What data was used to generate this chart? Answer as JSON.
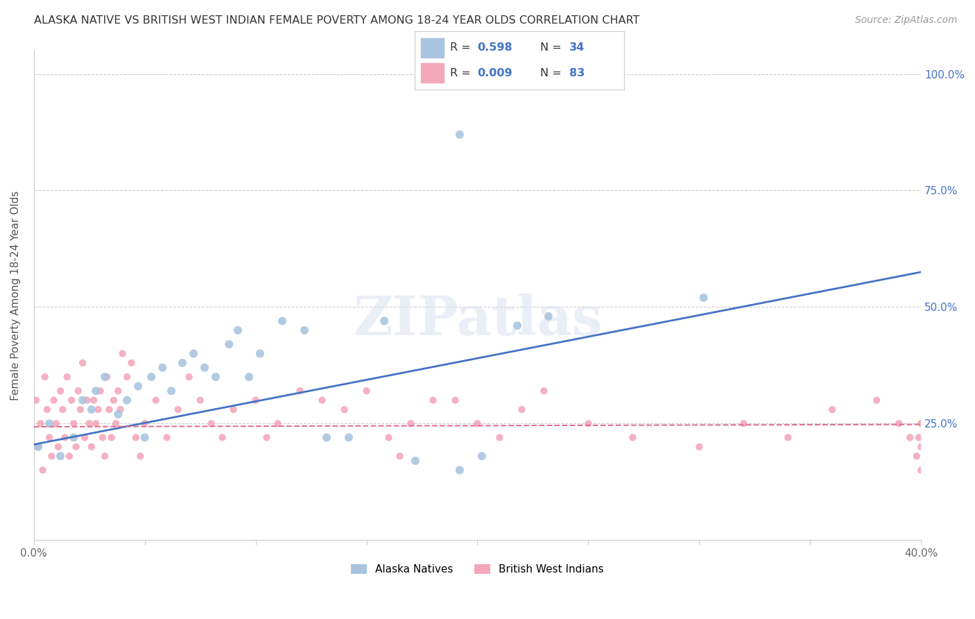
{
  "title": "ALASKA NATIVE VS BRITISH WEST INDIAN FEMALE POVERTY AMONG 18-24 YEAR OLDS CORRELATION CHART",
  "source": "Source: ZipAtlas.com",
  "ylabel": "Female Poverty Among 18-24 Year Olds",
  "xmin": 0.0,
  "xmax": 0.4,
  "ymin": 0.0,
  "ymax": 1.05,
  "x_ticks": [
    0.0,
    0.05,
    0.1,
    0.15,
    0.2,
    0.25,
    0.3,
    0.35,
    0.4
  ],
  "y_ticks": [
    0.0,
    0.25,
    0.5,
    0.75,
    1.0
  ],
  "y_tick_labels_right": [
    "",
    "25.0%",
    "50.0%",
    "75.0%",
    "100.0%"
  ],
  "legend_label1": "Alaska Natives",
  "legend_label2": "British West Indians",
  "R1": "0.598",
  "N1": "34",
  "R2": "0.009",
  "N2": "83",
  "color_blue": "#a8c4e0",
  "color_pink": "#f4a7b9",
  "color_blue_text": "#4472c4",
  "line_blue": "#4472c4",
  "line_pink": "#e07090",
  "watermark": "ZIPatlas",
  "alaska_x": [
    0.002,
    0.007,
    0.012,
    0.018,
    0.022,
    0.026,
    0.028,
    0.032,
    0.038,
    0.042,
    0.047,
    0.05,
    0.053,
    0.058,
    0.062,
    0.067,
    0.072,
    0.077,
    0.082,
    0.088,
    0.092,
    0.097,
    0.102,
    0.112,
    0.122,
    0.132,
    0.142,
    0.158,
    0.172,
    0.192,
    0.202,
    0.218,
    0.232,
    0.302
  ],
  "alaska_y": [
    0.2,
    0.25,
    0.18,
    0.22,
    0.3,
    0.28,
    0.32,
    0.35,
    0.27,
    0.3,
    0.33,
    0.22,
    0.35,
    0.37,
    0.32,
    0.38,
    0.4,
    0.37,
    0.35,
    0.42,
    0.45,
    0.35,
    0.4,
    0.47,
    0.45,
    0.22,
    0.22,
    0.47,
    0.17,
    0.15,
    0.18,
    0.46,
    0.48,
    0.52
  ],
  "alaska_outlier_x": [
    0.192
  ],
  "alaska_outlier_y": [
    0.87
  ],
  "bwi_x": [
    0.001,
    0.002,
    0.003,
    0.004,
    0.005,
    0.006,
    0.007,
    0.008,
    0.009,
    0.01,
    0.011,
    0.012,
    0.013,
    0.014,
    0.015,
    0.016,
    0.017,
    0.018,
    0.019,
    0.02,
    0.021,
    0.022,
    0.023,
    0.024,
    0.025,
    0.026,
    0.027,
    0.028,
    0.029,
    0.03,
    0.031,
    0.032,
    0.033,
    0.034,
    0.035,
    0.036,
    0.037,
    0.038,
    0.039,
    0.04,
    0.042,
    0.044,
    0.046,
    0.048,
    0.05,
    0.055,
    0.06,
    0.065,
    0.07,
    0.075,
    0.08,
    0.085,
    0.09,
    0.1,
    0.105,
    0.11,
    0.12,
    0.13,
    0.14,
    0.15,
    0.16,
    0.165,
    0.17,
    0.18,
    0.19,
    0.2,
    0.21,
    0.22,
    0.23,
    0.25,
    0.27,
    0.3,
    0.32,
    0.34,
    0.36,
    0.38,
    0.39,
    0.395,
    0.398,
    0.399,
    0.4,
    0.4,
    0.4
  ],
  "bwi_y": [
    0.3,
    0.2,
    0.25,
    0.15,
    0.35,
    0.28,
    0.22,
    0.18,
    0.3,
    0.25,
    0.2,
    0.32,
    0.28,
    0.22,
    0.35,
    0.18,
    0.3,
    0.25,
    0.2,
    0.32,
    0.28,
    0.38,
    0.22,
    0.3,
    0.25,
    0.2,
    0.3,
    0.25,
    0.28,
    0.32,
    0.22,
    0.18,
    0.35,
    0.28,
    0.22,
    0.3,
    0.25,
    0.32,
    0.28,
    0.4,
    0.35,
    0.38,
    0.22,
    0.18,
    0.25,
    0.3,
    0.22,
    0.28,
    0.35,
    0.3,
    0.25,
    0.22,
    0.28,
    0.3,
    0.22,
    0.25,
    0.32,
    0.3,
    0.28,
    0.32,
    0.22,
    0.18,
    0.25,
    0.3,
    0.3,
    0.25,
    0.22,
    0.28,
    0.32,
    0.25,
    0.22,
    0.2,
    0.25,
    0.22,
    0.28,
    0.3,
    0.25,
    0.22,
    0.18,
    0.22,
    0.25,
    0.2,
    0.15
  ],
  "alaska_line_x": [
    0.0,
    0.4
  ],
  "alaska_line_y": [
    0.205,
    0.575
  ],
  "bwi_line_x": [
    0.0,
    0.4
  ],
  "bwi_line_y": [
    0.243,
    0.248
  ]
}
